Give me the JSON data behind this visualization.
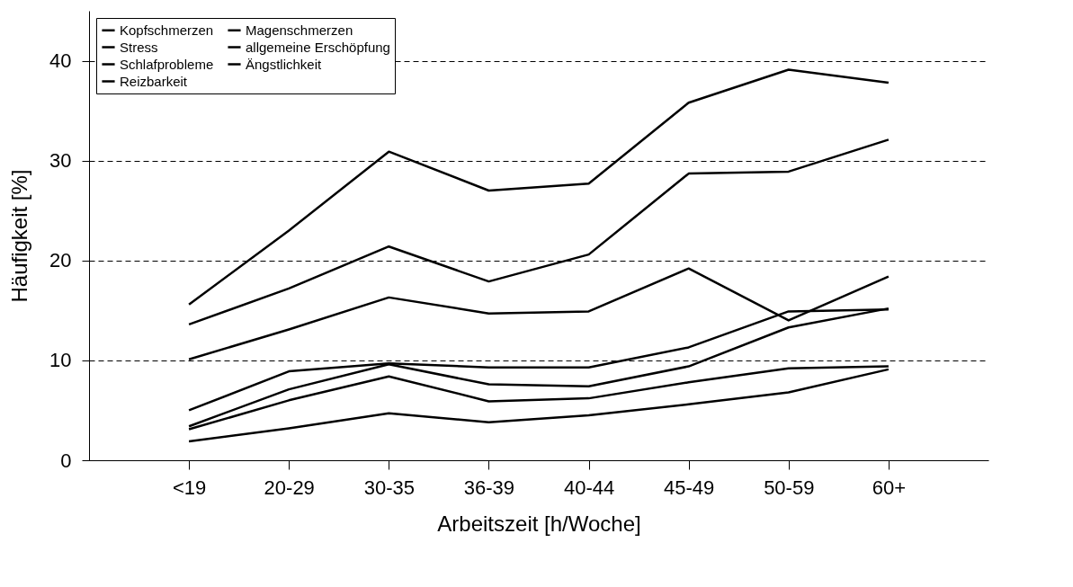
{
  "chart_data": {
    "type": "line",
    "xlabel": "Arbeitszeit [h/Woche]",
    "ylabel": "Häufigkeit [%]",
    "categories": [
      "<19",
      "20-29",
      "30-35",
      "36-39",
      "40-44",
      "45-49",
      "50-59",
      "60+"
    ],
    "series": [
      {
        "name": "Kopfschmerzen",
        "color": "#000000",
        "values": [
          10.1,
          13.1,
          16.3,
          14.7,
          14.9,
          19.2,
          14.0,
          18.4
        ]
      },
      {
        "name": "Stress",
        "color": "#000000",
        "values": [
          15.6,
          23.0,
          30.9,
          27.0,
          27.7,
          35.8,
          39.1,
          37.8
        ]
      },
      {
        "name": "Schlafprobleme",
        "color": "#000000",
        "values": [
          3.4,
          7.1,
          9.6,
          7.6,
          7.4,
          9.4,
          13.3,
          15.2
        ]
      },
      {
        "name": "Reizbarkeit",
        "color": "#000000",
        "values": [
          5.0,
          8.9,
          9.7,
          9.3,
          9.3,
          11.3,
          14.9,
          15.1
        ]
      },
      {
        "name": "Magenschmerzen",
        "color": "#000000",
        "values": [
          1.9,
          3.2,
          4.7,
          3.8,
          4.5,
          5.6,
          6.8,
          9.1
        ]
      },
      {
        "name": "allgemeine Erschöpfung",
        "color": "#000000",
        "values": [
          13.6,
          17.2,
          21.4,
          17.9,
          20.6,
          28.7,
          28.9,
          32.1
        ]
      },
      {
        "name": "Ängstlichkeit",
        "color": "#000000",
        "values": [
          3.1,
          6.0,
          8.4,
          5.9,
          6.2,
          7.8,
          9.2,
          9.4
        ]
      }
    ],
    "ylim": [
      0,
      45
    ],
    "yticks": [
      0,
      10,
      20,
      30,
      40
    ],
    "grid": "y",
    "legend": "top left",
    "line_style": "solid"
  }
}
